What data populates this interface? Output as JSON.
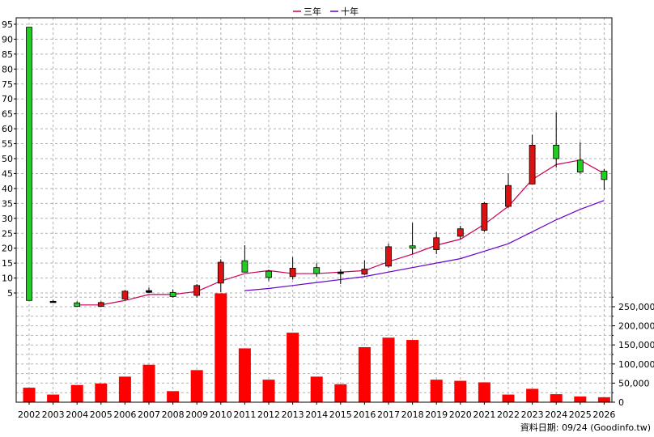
{
  "footer": {
    "source": "資料日期: 09/24 (Goodinfo.tw)"
  },
  "chart_data": {
    "type": "candlestick",
    "categories": [
      "2002",
      "2003",
      "2004",
      "2005",
      "2006",
      "2007",
      "2008",
      "2009",
      "2010",
      "2011",
      "2012",
      "2013",
      "2014",
      "2015",
      "2016",
      "2017",
      "2018",
      "2019",
      "2020",
      "2021",
      "2022",
      "2023",
      "2024",
      "2025",
      "2026"
    ],
    "price_axis": {
      "ticks": [
        5,
        10,
        15,
        20,
        25,
        30,
        35,
        40,
        45,
        50,
        55,
        60,
        65,
        70,
        75,
        80,
        85,
        90,
        95
      ],
      "ylim": [
        0,
        96
      ]
    },
    "volume_axis": {
      "ticks": [
        0,
        50000,
        100000,
        150000,
        200000,
        250000
      ],
      "tick_labels": [
        "0",
        "50,000",
        "100,000",
        "150,000",
        "200,000",
        "250,000"
      ],
      "ylim": [
        0,
        290000
      ]
    },
    "legend": [
      {
        "name": "三年",
        "color": "#cc0055"
      },
      {
        "name": "十年",
        "color": "#6600cc"
      }
    ],
    "candles": [
      {
        "year": "2002",
        "open": 2.5,
        "close": 94,
        "high": 94,
        "low": 2.5,
        "color": "#22cc22"
      },
      {
        "year": "2003",
        "open": 2.2,
        "close": 2.2,
        "high": 2.7,
        "low": 1.8,
        "color": "#000000"
      },
      {
        "year": "2004",
        "open": 0.5,
        "close": 1.7,
        "high": 2.2,
        "low": 0.3,
        "color": "#22cc22"
      },
      {
        "year": "2005",
        "open": 1.8,
        "close": 0.5,
        "high": 2.2,
        "low": 0.3,
        "color": "#dd1111"
      },
      {
        "year": "2006",
        "open": 3.0,
        "close": 5.6,
        "high": 6.0,
        "low": 2.6,
        "color": "#dd1111"
      },
      {
        "year": "2007",
        "open": 5.2,
        "close": 5.8,
        "high": 6.8,
        "low": 5.0,
        "color": "#000000"
      },
      {
        "year": "2008",
        "open": 5.2,
        "close": 3.8,
        "high": 6.2,
        "low": 3.5,
        "color": "#22cc22"
      },
      {
        "year": "2009",
        "open": 4.2,
        "close": 7.5,
        "high": 8.0,
        "low": 3.5,
        "color": "#dd1111"
      },
      {
        "year": "2010",
        "open": 8.3,
        "close": 15.3,
        "high": 16.3,
        "low": 5.3,
        "color": "#dd1111"
      },
      {
        "year": "2011",
        "open": 15.8,
        "close": 12.0,
        "high": 21.0,
        "low": 12.0,
        "color": "#22cc22"
      },
      {
        "year": "2012",
        "open": 12.3,
        "close": 10.2,
        "high": 12.8,
        "low": 9.0,
        "color": "#22cc22"
      },
      {
        "year": "2013",
        "open": 10.5,
        "close": 13.3,
        "high": 17.0,
        "low": 9.5,
        "color": "#dd1111"
      },
      {
        "year": "2014",
        "open": 13.5,
        "close": 11.5,
        "high": 15.0,
        "low": 10.5,
        "color": "#22cc22"
      },
      {
        "year": "2015",
        "open": 11.5,
        "close": 12.0,
        "high": 13.0,
        "low": 8.0,
        "color": "#000000"
      },
      {
        "year": "2016",
        "open": 11.3,
        "close": 13.0,
        "high": 16.0,
        "low": 11.0,
        "color": "#dd1111"
      },
      {
        "year": "2017",
        "open": 14.0,
        "close": 20.5,
        "high": 21.5,
        "low": 13.5,
        "color": "#dd1111"
      },
      {
        "year": "2018",
        "open": 20.8,
        "close": 20.0,
        "high": 28.5,
        "low": 18.0,
        "color": "#22cc22"
      },
      {
        "year": "2019",
        "open": 19.5,
        "close": 23.5,
        "high": 25.5,
        "low": 18.0,
        "color": "#dd1111"
      },
      {
        "year": "2020",
        "open": 24.0,
        "close": 26.5,
        "high": 27.5,
        "low": 23.0,
        "color": "#dd1111"
      },
      {
        "year": "2021",
        "open": 26.0,
        "close": 35.0,
        "high": 35.5,
        "low": 25.5,
        "color": "#dd1111"
      },
      {
        "year": "2022",
        "open": 34.0,
        "close": 41.0,
        "high": 45.0,
        "low": 33.5,
        "color": "#dd1111"
      },
      {
        "year": "2023",
        "open": 41.5,
        "close": 54.5,
        "high": 58.0,
        "low": 41.5,
        "color": "#dd1111"
      },
      {
        "year": "2024",
        "open": 54.5,
        "close": 50.0,
        "high": 65.5,
        "low": 47.0,
        "color": "#22cc22"
      },
      {
        "year": "2025",
        "open": 49.5,
        "close": 45.5,
        "high": 55.5,
        "low": 45.0,
        "color": "#22cc22"
      },
      {
        "year": "2026",
        "open": 45.8,
        "close": 43.0,
        "high": 46.5,
        "low": 39.5,
        "color": "#22cc22"
      }
    ],
    "series": [
      {
        "name": "三年",
        "color": "#cc0055",
        "points": [
          [
            "2004",
            1.0
          ],
          [
            "2005",
            1.0
          ],
          [
            "2006",
            2.5
          ],
          [
            "2007",
            4.5
          ],
          [
            "2008",
            4.5
          ],
          [
            "2009",
            5.5
          ],
          [
            "2010",
            9.0
          ],
          [
            "2011",
            11.5
          ],
          [
            "2012",
            12.5
          ],
          [
            "2013",
            11.5
          ],
          [
            "2014",
            11.5
          ],
          [
            "2015",
            12.0
          ],
          [
            "2016",
            12.5
          ],
          [
            "2017",
            15.5
          ],
          [
            "2018",
            18.0
          ],
          [
            "2019",
            21.0
          ],
          [
            "2020",
            23.0
          ],
          [
            "2021",
            28.0
          ],
          [
            "2022",
            34.0
          ],
          [
            "2023",
            43.0
          ],
          [
            "2024",
            48.0
          ],
          [
            "2025",
            49.5
          ],
          [
            "2026",
            45.0
          ]
        ]
      },
      {
        "name": "十年",
        "color": "#6600cc",
        "points": [
          [
            "2011",
            5.8
          ],
          [
            "2012",
            6.5
          ],
          [
            "2013",
            7.5
          ],
          [
            "2014",
            8.5
          ],
          [
            "2015",
            9.5
          ],
          [
            "2016",
            10.5
          ],
          [
            "2017",
            12.0
          ],
          [
            "2018",
            13.5
          ],
          [
            "2019",
            15.0
          ],
          [
            "2020",
            16.5
          ],
          [
            "2021",
            19.0
          ],
          [
            "2022",
            21.5
          ],
          [
            "2023",
            25.5
          ],
          [
            "2024",
            29.5
          ],
          [
            "2025",
            33.0
          ],
          [
            "2026",
            36.0
          ]
        ]
      }
    ],
    "volume": [
      {
        "year": "2002",
        "value": 38000
      },
      {
        "year": "2003",
        "value": 20000
      },
      {
        "year": "2004",
        "value": 45000
      },
      {
        "year": "2005",
        "value": 49000
      },
      {
        "year": "2006",
        "value": 67000
      },
      {
        "year": "2007",
        "value": 98000
      },
      {
        "year": "2008",
        "value": 29000
      },
      {
        "year": "2009",
        "value": 84000
      },
      {
        "year": "2010",
        "value": 285000
      },
      {
        "year": "2011",
        "value": 141000
      },
      {
        "year": "2012",
        "value": 59000
      },
      {
        "year": "2013",
        "value": 182000
      },
      {
        "year": "2014",
        "value": 67000
      },
      {
        "year": "2015",
        "value": 47000
      },
      {
        "year": "2016",
        "value": 144000
      },
      {
        "year": "2017",
        "value": 169000
      },
      {
        "year": "2018",
        "value": 163000
      },
      {
        "year": "2019",
        "value": 59000
      },
      {
        "year": "2020",
        "value": 56000
      },
      {
        "year": "2021",
        "value": 52000
      },
      {
        "year": "2022",
        "value": 20000
      },
      {
        "year": "2023",
        "value": 35000
      },
      {
        "year": "2024",
        "value": 21000
      },
      {
        "year": "2025",
        "value": 15000
      },
      {
        "year": "2026",
        "value": 13000
      }
    ],
    "volume_color": "#ff0000",
    "grid": true,
    "legend_position": "top-center"
  }
}
